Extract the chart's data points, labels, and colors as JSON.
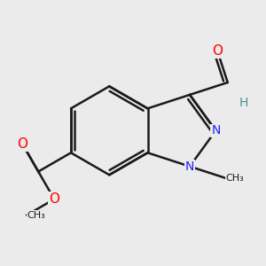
{
  "background_color": "#ebebeb",
  "bond_color": "#1a1a1a",
  "bond_width": 1.8,
  "atom_colors": {
    "N": "#2020ff",
    "O": "#ff0000",
    "H": "#4a9090",
    "C": "#1a1a1a"
  }
}
